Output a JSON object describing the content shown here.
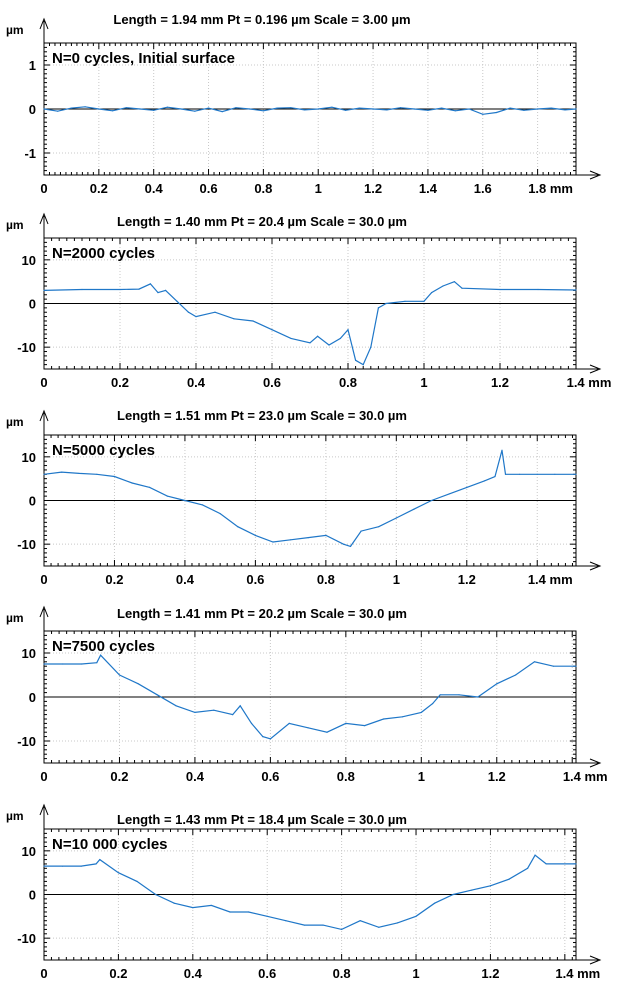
{
  "chart_data": [
    {
      "type": "line",
      "title": "Length = 1.94 mm  Pt = 0.196 µm  Scale = 3.00 µm",
      "annotation": "N=0 cycles, Initial surface",
      "xlabel": "mm",
      "ylabel": "µm",
      "xlim": [
        0,
        1.94
      ],
      "ylim": [
        -1.5,
        1.5
      ],
      "xticks": [
        0,
        0.2,
        0.4,
        0.6,
        0.8,
        1,
        1.2,
        1.4,
        1.6,
        1.8
      ],
      "xtick_labels": [
        "0",
        "0.2",
        "0.4",
        "0.6",
        "0.8",
        "1",
        "1.2",
        "1.4",
        "1.6",
        "1.8 mm"
      ],
      "yticks": [
        1,
        0,
        -1
      ],
      "ytick_labels": [
        "1",
        "0",
        "-1"
      ],
      "grid": true,
      "zero_line": true,
      "color": "#1f77c8",
      "series": [
        {
          "x": [
            0,
            0.05,
            0.1,
            0.15,
            0.2,
            0.25,
            0.3,
            0.35,
            0.4,
            0.45,
            0.5,
            0.55,
            0.6,
            0.65,
            0.7,
            0.75,
            0.8,
            0.85,
            0.9,
            0.95,
            1.0,
            1.05,
            1.1,
            1.15,
            1.2,
            1.25,
            1.3,
            1.35,
            1.4,
            1.45,
            1.5,
            1.55,
            1.6,
            1.65,
            1.7,
            1.75,
            1.8,
            1.85,
            1.9,
            1.94
          ],
          "values": [
            0.0,
            -0.05,
            0.02,
            0.05,
            0.0,
            -0.04,
            0.03,
            0.0,
            -0.03,
            0.04,
            0.0,
            -0.05,
            0.02,
            -0.06,
            0.03,
            0.0,
            -0.04,
            0.02,
            0.03,
            -0.02,
            0.0,
            0.04,
            -0.03,
            0.02,
            0.0,
            -0.02,
            0.03,
            0.0,
            -0.03,
            0.02,
            -0.04,
            0.0,
            -0.12,
            -0.08,
            0.02,
            -0.03,
            0.0,
            0.02,
            -0.02,
            0.0
          ]
        }
      ]
    },
    {
      "type": "line",
      "title": "Length = 1.40 mm  Pt = 20.4 µm  Scale = 30.0 µm",
      "annotation": "N=2000 cycles",
      "xlabel": "mm",
      "ylabel": "µm",
      "xlim": [
        0,
        1.4
      ],
      "ylim": [
        -15,
        15
      ],
      "xticks": [
        0,
        0.2,
        0.4,
        0.6,
        0.8,
        1,
        1.2,
        1.4
      ],
      "xtick_labels": [
        "0",
        "0.2",
        "0.4",
        "0.6",
        "0.8",
        "1",
        "1.2",
        "1.4 mm"
      ],
      "yticks": [
        10,
        0,
        -10
      ],
      "ytick_labels": [
        "10",
        "0",
        "-10"
      ],
      "grid": true,
      "zero_line": true,
      "color": "#1f77c8",
      "series": [
        {
          "x": [
            0,
            0.1,
            0.2,
            0.25,
            0.28,
            0.3,
            0.32,
            0.35,
            0.38,
            0.4,
            0.45,
            0.5,
            0.55,
            0.6,
            0.65,
            0.7,
            0.72,
            0.75,
            0.78,
            0.8,
            0.82,
            0.84,
            0.86,
            0.88,
            0.9,
            0.95,
            1.0,
            1.02,
            1.05,
            1.08,
            1.1,
            1.2,
            1.3,
            1.4
          ],
          "values": [
            3,
            3.2,
            3.2,
            3.3,
            4.5,
            2.5,
            3,
            0.5,
            -2,
            -3,
            -2,
            -3.5,
            -4,
            -6,
            -8,
            -9,
            -7.5,
            -9.5,
            -8,
            -6,
            -13,
            -14,
            -10,
            -1,
            0,
            0.5,
            0.5,
            2.5,
            4,
            5,
            3.5,
            3.2,
            3.2,
            3.1
          ]
        }
      ]
    },
    {
      "type": "line",
      "title": "Length = 1.51 mm  Pt = 23.0 µm  Scale = 30.0 µm",
      "annotation": "N=5000 cycles",
      "xlabel": "mm",
      "ylabel": "µm",
      "xlim": [
        0,
        1.51
      ],
      "ylim": [
        -15,
        15
      ],
      "xticks": [
        0,
        0.2,
        0.4,
        0.6,
        0.8,
        1,
        1.2,
        1.4
      ],
      "xtick_labels": [
        "0",
        "0.2",
        "0.4",
        "0.6",
        "0.8",
        "1",
        "1.2",
        "1.4 mm"
      ],
      "yticks": [
        10,
        0,
        -10
      ],
      "ytick_labels": [
        "10",
        "0",
        "-10"
      ],
      "grid": true,
      "zero_line": true,
      "color": "#1f77c8",
      "series": [
        {
          "x": [
            0,
            0.05,
            0.1,
            0.15,
            0.2,
            0.25,
            0.3,
            0.35,
            0.4,
            0.45,
            0.5,
            0.55,
            0.6,
            0.65,
            0.7,
            0.75,
            0.8,
            0.85,
            0.87,
            0.9,
            0.95,
            1.0,
            1.05,
            1.1,
            1.15,
            1.2,
            1.25,
            1.28,
            1.3,
            1.31,
            1.35,
            1.4,
            1.45,
            1.51
          ],
          "values": [
            6,
            6.5,
            6.2,
            6,
            5.5,
            4,
            3,
            1,
            0,
            -1,
            -3,
            -6,
            -8,
            -9.5,
            -9,
            -8.5,
            -8,
            -10,
            -10.5,
            -7,
            -6,
            -4,
            -2,
            0,
            1.5,
            3,
            4.5,
            5.5,
            11.5,
            6,
            6,
            6,
            6,
            6
          ]
        }
      ]
    },
    {
      "type": "line",
      "title": "Length = 1.41 mm  Pt = 20.2 µm  Scale = 30.0 µm",
      "annotation": "N=7500 cycles",
      "xlabel": "mm",
      "ylabel": "µm",
      "xlim": [
        0,
        1.41
      ],
      "ylim": [
        -15,
        15
      ],
      "xticks": [
        0,
        0.2,
        0.4,
        0.6,
        0.8,
        1,
        1.2,
        1.4
      ],
      "xtick_labels": [
        "0",
        "0.2",
        "0.4",
        "0.6",
        "0.8",
        "1",
        "1.2",
        "1.4 mm"
      ],
      "yticks": [
        10,
        0,
        -10
      ],
      "ytick_labels": [
        "10",
        "0",
        "-10"
      ],
      "grid": true,
      "zero_line": true,
      "color": "#1f77c8",
      "series": [
        {
          "x": [
            0,
            0.05,
            0.1,
            0.14,
            0.15,
            0.2,
            0.25,
            0.3,
            0.35,
            0.4,
            0.45,
            0.5,
            0.52,
            0.55,
            0.58,
            0.6,
            0.65,
            0.7,
            0.75,
            0.8,
            0.85,
            0.9,
            0.95,
            1.0,
            1.03,
            1.05,
            1.1,
            1.15,
            1.2,
            1.25,
            1.3,
            1.35,
            1.41
          ],
          "values": [
            7.5,
            7.5,
            7.5,
            7.8,
            9.5,
            5,
            3,
            0.5,
            -2,
            -3.5,
            -3,
            -4,
            -2,
            -6,
            -9,
            -9.5,
            -6,
            -7,
            -8,
            -6,
            -6.5,
            -5,
            -4.5,
            -3.5,
            -1.5,
            0.5,
            0.5,
            0,
            3,
            5,
            8,
            7,
            7
          ]
        }
      ]
    },
    {
      "type": "line",
      "title": "Length = 1.43 mm  Pt = 18.4 µm  Scale = 30.0 µm",
      "annotation": "N=10 000 cycles",
      "xlabel": "mm",
      "ylabel": "µm",
      "xlim": [
        0,
        1.43
      ],
      "ylim": [
        -15,
        15
      ],
      "xticks": [
        0,
        0.2,
        0.4,
        0.6,
        0.8,
        1,
        1.2,
        1.4
      ],
      "xtick_labels": [
        "0",
        "0.2",
        "0.4",
        "0.6",
        "0.8",
        "1",
        "1.2",
        "1.4 mm"
      ],
      "yticks": [
        10,
        0,
        -10
      ],
      "ytick_labels": [
        "10",
        "0",
        "-10"
      ],
      "grid": true,
      "zero_line": true,
      "color": "#1f77c8",
      "series": [
        {
          "x": [
            0,
            0.05,
            0.1,
            0.14,
            0.15,
            0.2,
            0.25,
            0.3,
            0.35,
            0.4,
            0.45,
            0.5,
            0.55,
            0.6,
            0.65,
            0.7,
            0.75,
            0.8,
            0.85,
            0.9,
            0.95,
            1.0,
            1.05,
            1.1,
            1.15,
            1.2,
            1.25,
            1.3,
            1.32,
            1.35,
            1.43
          ],
          "values": [
            6.5,
            6.5,
            6.5,
            7,
            8,
            5,
            3,
            0,
            -2,
            -3,
            -2.5,
            -4,
            -4,
            -5,
            -6,
            -7,
            -7,
            -8,
            -6,
            -7.5,
            -6.5,
            -5,
            -2,
            0,
            1,
            2,
            3.5,
            6,
            9,
            7,
            7
          ]
        }
      ]
    }
  ]
}
